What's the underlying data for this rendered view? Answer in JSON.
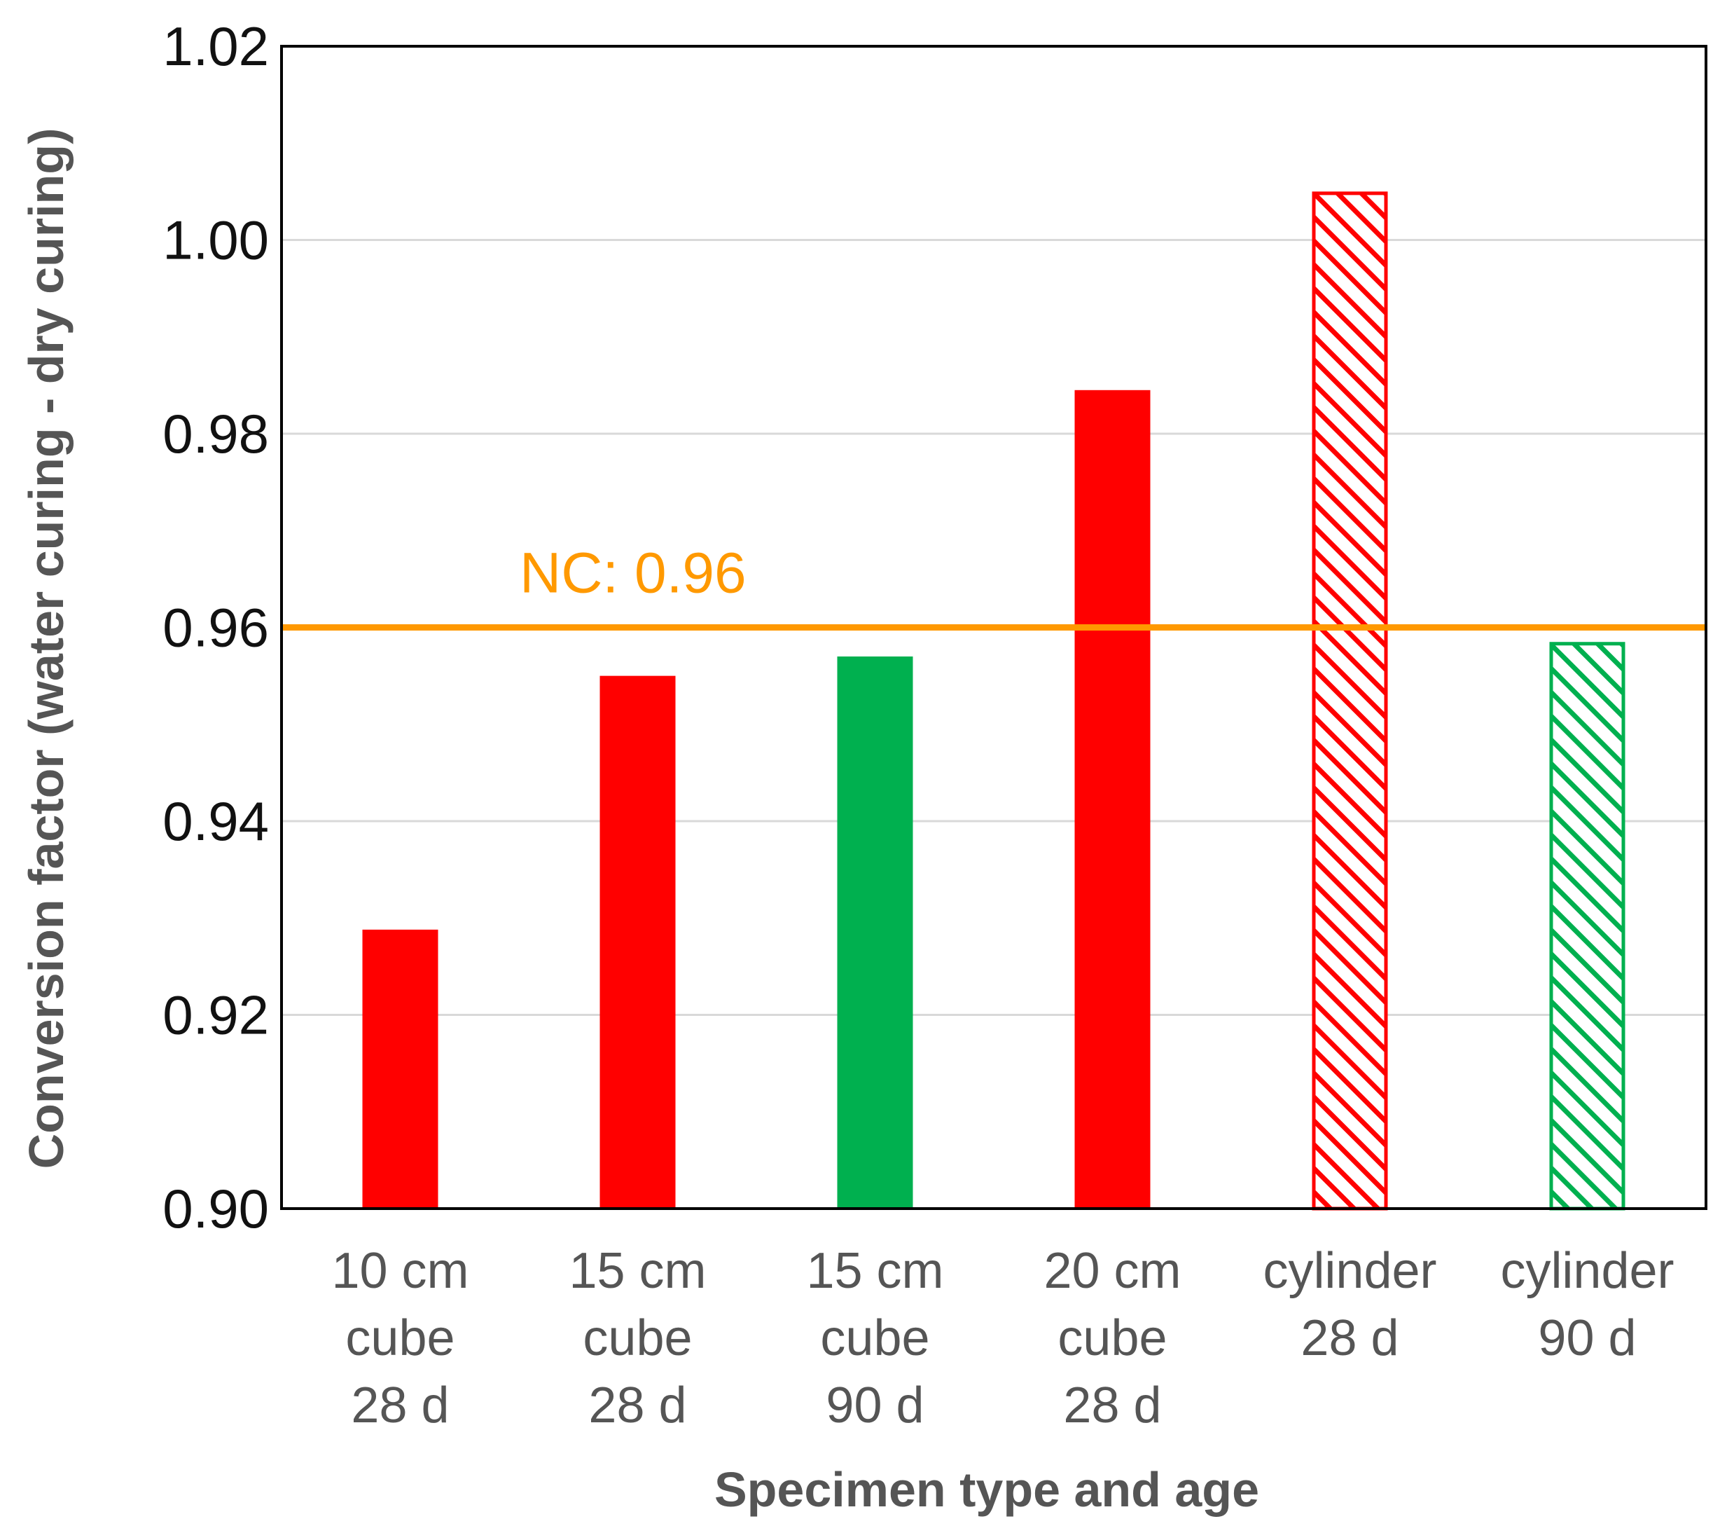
{
  "chart_data": {
    "type": "bar",
    "title": "",
    "xlabel": "Specimen type and age",
    "ylabel": "Conversion factor (water curing - dry curing)",
    "ylim": [
      0.9,
      1.02
    ],
    "yticks": [
      "0.90",
      "0.92",
      "0.94",
      "0.96",
      "0.98",
      "1.00",
      "1.02"
    ],
    "grid": true,
    "categories": [
      [
        "10 cm",
        "cube",
        "28 d"
      ],
      [
        "15 cm",
        "cube",
        "28 d"
      ],
      [
        "15 cm",
        "cube",
        "90 d"
      ],
      [
        "20 cm",
        "cube",
        "28 d"
      ],
      [
        "cylinder",
        "28 d"
      ],
      [
        "cylinder",
        "90 d"
      ]
    ],
    "values": [
      0.9288,
      0.955,
      0.957,
      0.9845,
      1.005,
      0.9585
    ],
    "bar_styles": [
      "solid",
      "solid",
      "solid",
      "solid",
      "hatched",
      "hatched"
    ],
    "bar_colors": [
      "#ff0000",
      "#ff0000",
      "#00b04f",
      "#ff0000",
      "#ff0000",
      "#00b04f"
    ],
    "reference_line": {
      "label": "NC: 0.96",
      "value": 0.96,
      "color": "#ff9900"
    }
  }
}
